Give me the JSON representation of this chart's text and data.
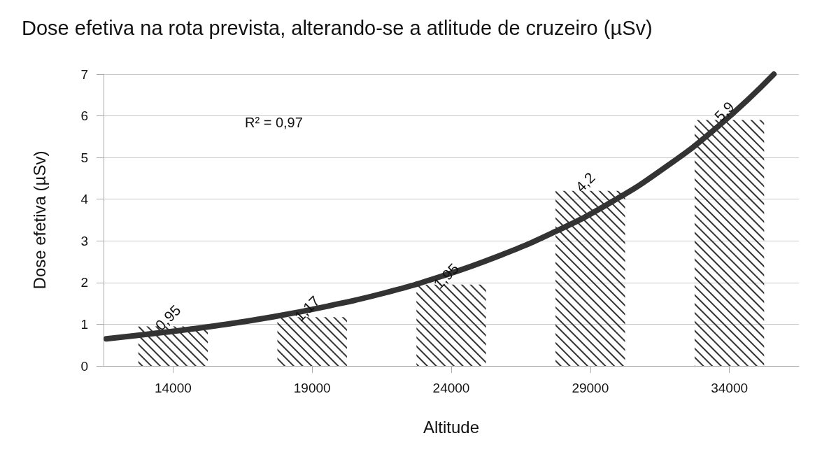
{
  "chart_data": {
    "type": "bar",
    "title": "Dose efetiva na rota prevista, alterando-se a atlitude de cruzeiro (µSv)",
    "xlabel": "Altitude",
    "ylabel": "Dose efetiva (µSv)",
    "x": [
      14000,
      19000,
      24000,
      29000,
      34000
    ],
    "xlim": [
      11500,
      36500
    ],
    "xticks": [
      14000,
      19000,
      24000,
      29000,
      34000
    ],
    "series": [
      {
        "color": "#333333",
        "values": [
          0.95,
          1.17,
          1.95,
          4.2,
          5.9
        ],
        "value_labels": [
          "0,95",
          "1,17",
          "1,95",
          "4,2",
          "5,9"
        ]
      },
      {
        "type": "line",
        "color": "#333333",
        "x": [
          11600,
          13600,
          15600,
          17600,
          19600,
          21600,
          23600,
          25600,
          27600,
          29600,
          31600,
          33600,
          35600
        ],
        "values": [
          0.65,
          0.8,
          0.97,
          1.18,
          1.44,
          1.75,
          2.14,
          2.61,
          3.18,
          3.87,
          4.72,
          5.75,
          7.0
        ]
      }
    ],
    "ylim": [
      0,
      7
    ],
    "yticks": [
      0,
      1,
      2,
      3,
      4,
      5,
      6,
      7
    ],
    "grid": "y",
    "marker": "none",
    "line_style": "solid",
    "annotations": [
      "R² = 0,97"
    ]
  }
}
